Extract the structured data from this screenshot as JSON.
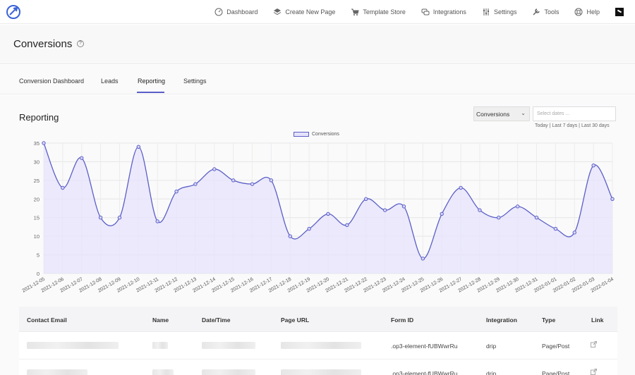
{
  "nav": {
    "items": [
      {
        "label": "Dashboard",
        "icon": "gauge-icon"
      },
      {
        "label": "Create New Page",
        "icon": "layers-icon"
      },
      {
        "label": "Template Store",
        "icon": "cart-icon"
      },
      {
        "label": "Integrations",
        "icon": "chat-icon"
      },
      {
        "label": "Settings",
        "icon": "sliders-icon"
      },
      {
        "label": "Tools",
        "icon": "tools-icon"
      },
      {
        "label": "Help",
        "icon": "lifebuoy-icon"
      }
    ]
  },
  "header": {
    "title": "Conversions",
    "help": "?"
  },
  "tabs": [
    {
      "label": "Conversion Dashboard"
    },
    {
      "label": "Leads"
    },
    {
      "label": "Reporting",
      "active": true
    },
    {
      "label": "Settings"
    }
  ],
  "reporting": {
    "title": "Reporting",
    "select_value": "Conversions",
    "date_placeholder": "Select dates ...",
    "quick": [
      "Today",
      "Last 7 days",
      "Last 30 days"
    ]
  },
  "accent_color": "#5b5fc7",
  "fill_color": "#e5e3fb",
  "chart_data": {
    "type": "area",
    "series": [
      {
        "name": "Conversions",
        "values": [
          35,
          23,
          31,
          15,
          15,
          34,
          14,
          22,
          24,
          28,
          25,
          24,
          25,
          10,
          12,
          16,
          13,
          20,
          17,
          18,
          4,
          16,
          23,
          17,
          15,
          18,
          15,
          12,
          11,
          29,
          20
        ]
      }
    ],
    "x": [
      "2021-12-05",
      "2021-12-06",
      "2021-12-07",
      "2021-12-08",
      "2021-12-09",
      "2021-12-10",
      "2021-12-11",
      "2021-12-12",
      "2021-12-13",
      "2021-12-14",
      "2021-12-15",
      "2021-12-16",
      "2021-12-17",
      "2021-12-18",
      "2021-12-19",
      "2021-12-20",
      "2021-12-21",
      "2021-12-22",
      "2021-12-23",
      "2021-12-24",
      "2021-12-25",
      "2021-12-26",
      "2021-12-27",
      "2021-12-28",
      "2021-12-29",
      "2021-12-30",
      "2021-12-31",
      "2022-01-01",
      "2022-01-02",
      "2022-01-03",
      "2022-01-04"
    ],
    "yticks": [
      0,
      5,
      10,
      15,
      20,
      25,
      30,
      35
    ],
    "ylim": [
      0,
      35
    ],
    "grid": true,
    "legend": "top-center"
  },
  "table": {
    "headers": [
      "Contact Email",
      "Name",
      "Date/Time",
      "Page URL",
      "Form ID",
      "Integration",
      "Type",
      "Link"
    ],
    "rows": [
      {
        "form_id": ".op3-element-fUBWwrRu",
        "integration": "drip",
        "type": "Page/Post"
      },
      {
        "form_id": ".op3-element-fUBWwrRu",
        "integration": "drip",
        "type": "Page/Post"
      }
    ]
  }
}
